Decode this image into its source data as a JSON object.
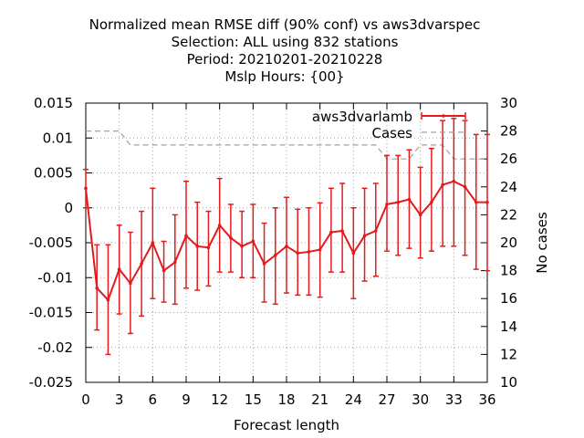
{
  "chart_data": {
    "type": "line",
    "title_lines": [
      "Normalized mean RMSE diff (90% conf) vs aws3dvarspec",
      "Selection: ALL using   832 stations",
      "Period: 20210201-20210228",
      "Mslp   Hours: {00}"
    ],
    "xlabel": "Forecast length",
    "ylabel": "",
    "y2label": "No cases",
    "xlim": [
      0,
      36
    ],
    "ylim": [
      -0.025,
      0.015
    ],
    "y2lim": [
      10,
      30
    ],
    "xticks": [
      0,
      3,
      6,
      9,
      12,
      15,
      18,
      21,
      24,
      27,
      30,
      33,
      36
    ],
    "yticks": [
      -0.025,
      -0.02,
      -0.015,
      -0.01,
      -0.005,
      0,
      0.005,
      0.01,
      0.015
    ],
    "yticklabels": [
      "-0.025",
      "-0.02",
      "-0.015",
      "-0.01",
      "-0.005",
      "0",
      "0.005",
      "0.01",
      "0.015"
    ],
    "y2ticks": [
      10,
      12,
      14,
      16,
      18,
      20,
      22,
      24,
      26,
      28,
      30
    ],
    "grid": true,
    "legend_position": "top-right",
    "series": [
      {
        "name": "aws3dvarlamb",
        "color": "#e41a1c",
        "x": [
          0,
          1,
          2,
          3,
          4,
          5,
          6,
          7,
          8,
          9,
          10,
          11,
          12,
          13,
          14,
          15,
          16,
          17,
          18,
          19,
          20,
          21,
          22,
          23,
          24,
          25,
          26,
          27,
          28,
          29,
          30,
          31,
          32,
          33,
          34,
          35,
          36
        ],
        "y": [
          0.0028,
          -0.0115,
          -0.0132,
          -0.0088,
          -0.0108,
          -0.008,
          -0.005,
          -0.009,
          -0.0078,
          -0.004,
          -0.0055,
          -0.0057,
          -0.0025,
          -0.0043,
          -0.0055,
          -0.0048,
          -0.008,
          -0.0068,
          -0.0055,
          -0.0065,
          -0.0063,
          -0.006,
          -0.0035,
          -0.0033,
          -0.0065,
          -0.004,
          -0.0033,
          0.0005,
          0.0008,
          0.0012,
          -0.001,
          0.0008,
          0.0033,
          0.0038,
          0.003,
          0.0008,
          0.0008
        ],
        "ylow": [
          0.0,
          -0.0175,
          -0.021,
          -0.0152,
          -0.018,
          -0.0155,
          -0.013,
          -0.0135,
          -0.0138,
          -0.0115,
          -0.0118,
          -0.0112,
          -0.0092,
          -0.0092,
          -0.01,
          -0.01,
          -0.0135,
          -0.0138,
          -0.0122,
          -0.0125,
          -0.0125,
          -0.0128,
          -0.0092,
          -0.0092,
          -0.013,
          -0.0105,
          -0.0098,
          -0.0062,
          -0.0068,
          -0.0058,
          -0.0072,
          -0.0062,
          -0.0055,
          -0.0055,
          -0.0068,
          -0.0088,
          -0.009
        ],
        "yhigh": [
          0.0055,
          -0.0053,
          -0.0053,
          -0.0025,
          -0.0035,
          -0.0005,
          0.0028,
          -0.0048,
          -0.001,
          0.0038,
          0.0008,
          -0.0005,
          0.0042,
          0.0005,
          -0.0005,
          0.0005,
          -0.0022,
          0.0,
          0.0015,
          -0.0002,
          0.0,
          0.0007,
          0.0028,
          0.0035,
          0.0,
          0.0028,
          0.0035,
          0.0075,
          0.0075,
          0.0083,
          0.0058,
          0.0085,
          0.0125,
          0.0128,
          0.0125,
          0.0105,
          0.0105
        ]
      },
      {
        "name": "Cases",
        "color": "#a0a0a0",
        "axis": "y2",
        "x": [
          0,
          1,
          2,
          3,
          4,
          5,
          6,
          7,
          8,
          9,
          10,
          11,
          12,
          13,
          14,
          15,
          16,
          17,
          18,
          19,
          20,
          21,
          22,
          23,
          24,
          25,
          26,
          27,
          28,
          29,
          30,
          31,
          32,
          33,
          34,
          35,
          36
        ],
        "y": [
          28,
          28,
          28,
          28,
          27,
          27,
          27,
          27,
          27,
          27,
          27,
          27,
          27,
          27,
          27,
          27,
          27,
          27,
          27,
          27,
          27,
          27,
          27,
          27,
          27,
          27,
          27,
          26,
          26,
          26,
          27,
          27,
          27,
          26,
          26,
          26,
          26
        ]
      }
    ]
  }
}
